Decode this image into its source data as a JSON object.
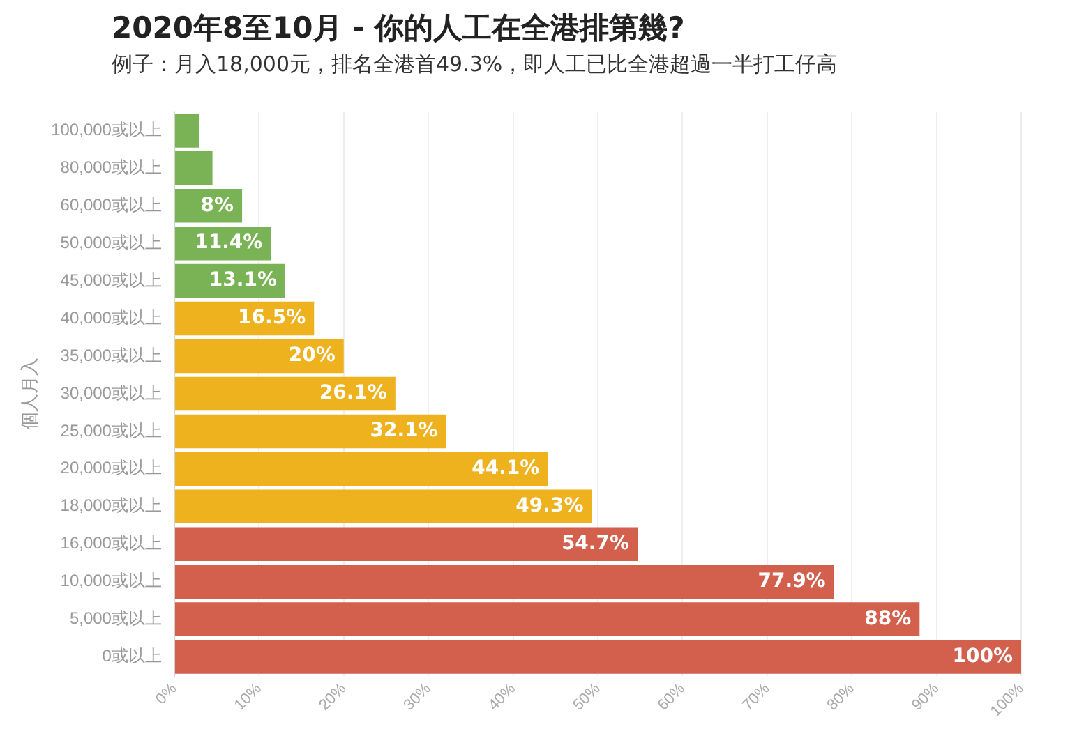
{
  "chart_data": {
    "type": "bar",
    "orientation": "horizontal",
    "title": "2020年8至10月 - 你的人工在全港排第幾?",
    "subtitle": "例子：月入18,000元，排名全港首49.3%，即人工已比全港超過一半打工仔高",
    "ylabel": "個人月入",
    "categories": [
      "100,000或以上",
      "80,000或以上",
      "60,000或以上",
      "50,000或以上",
      "45,000或以上",
      "40,000或以上",
      "35,000或以上",
      "30,000或以上",
      "25,000或以上",
      "20,000或以上",
      "18,000或以上",
      "16,000或以上",
      "10,000或以上",
      "5,000或以上",
      "0或以上"
    ],
    "values": [
      2.9,
      4.5,
      8,
      11.4,
      13.1,
      16.5,
      20,
      26.1,
      32.1,
      44.1,
      49.3,
      54.7,
      77.9,
      88,
      100
    ],
    "value_labels": [
      null,
      null,
      "8%",
      "11.4%",
      "13.1%",
      "16.5%",
      "20%",
      "26.1%",
      "32.1%",
      "44.1%",
      "49.3%",
      "54.7%",
      "77.9%",
      "88%",
      "100%"
    ],
    "colors": [
      "#7ab356",
      "#7ab356",
      "#7ab356",
      "#7ab356",
      "#7ab356",
      "#edb21d",
      "#edb21d",
      "#edb21d",
      "#edb21d",
      "#edb21d",
      "#edb21d",
      "#d2604c",
      "#d2604c",
      "#d2604c",
      "#d2604c"
    ],
    "xlim": [
      0,
      100
    ],
    "xticks": [
      {
        "value": 0,
        "label": "0%"
      },
      {
        "value": 10,
        "label": "10%"
      },
      {
        "value": 20,
        "label": "20%"
      },
      {
        "value": 30,
        "label": "30%"
      },
      {
        "value": 40,
        "label": "40%"
      },
      {
        "value": 50,
        "label": "50%"
      },
      {
        "value": 60,
        "label": "60%"
      },
      {
        "value": 70,
        "label": "70%"
      },
      {
        "value": 80,
        "label": "80%"
      },
      {
        "value": 90,
        "label": "90%"
      },
      {
        "value": 100,
        "label": "100%"
      }
    ],
    "grid": "x",
    "legend": false
  }
}
